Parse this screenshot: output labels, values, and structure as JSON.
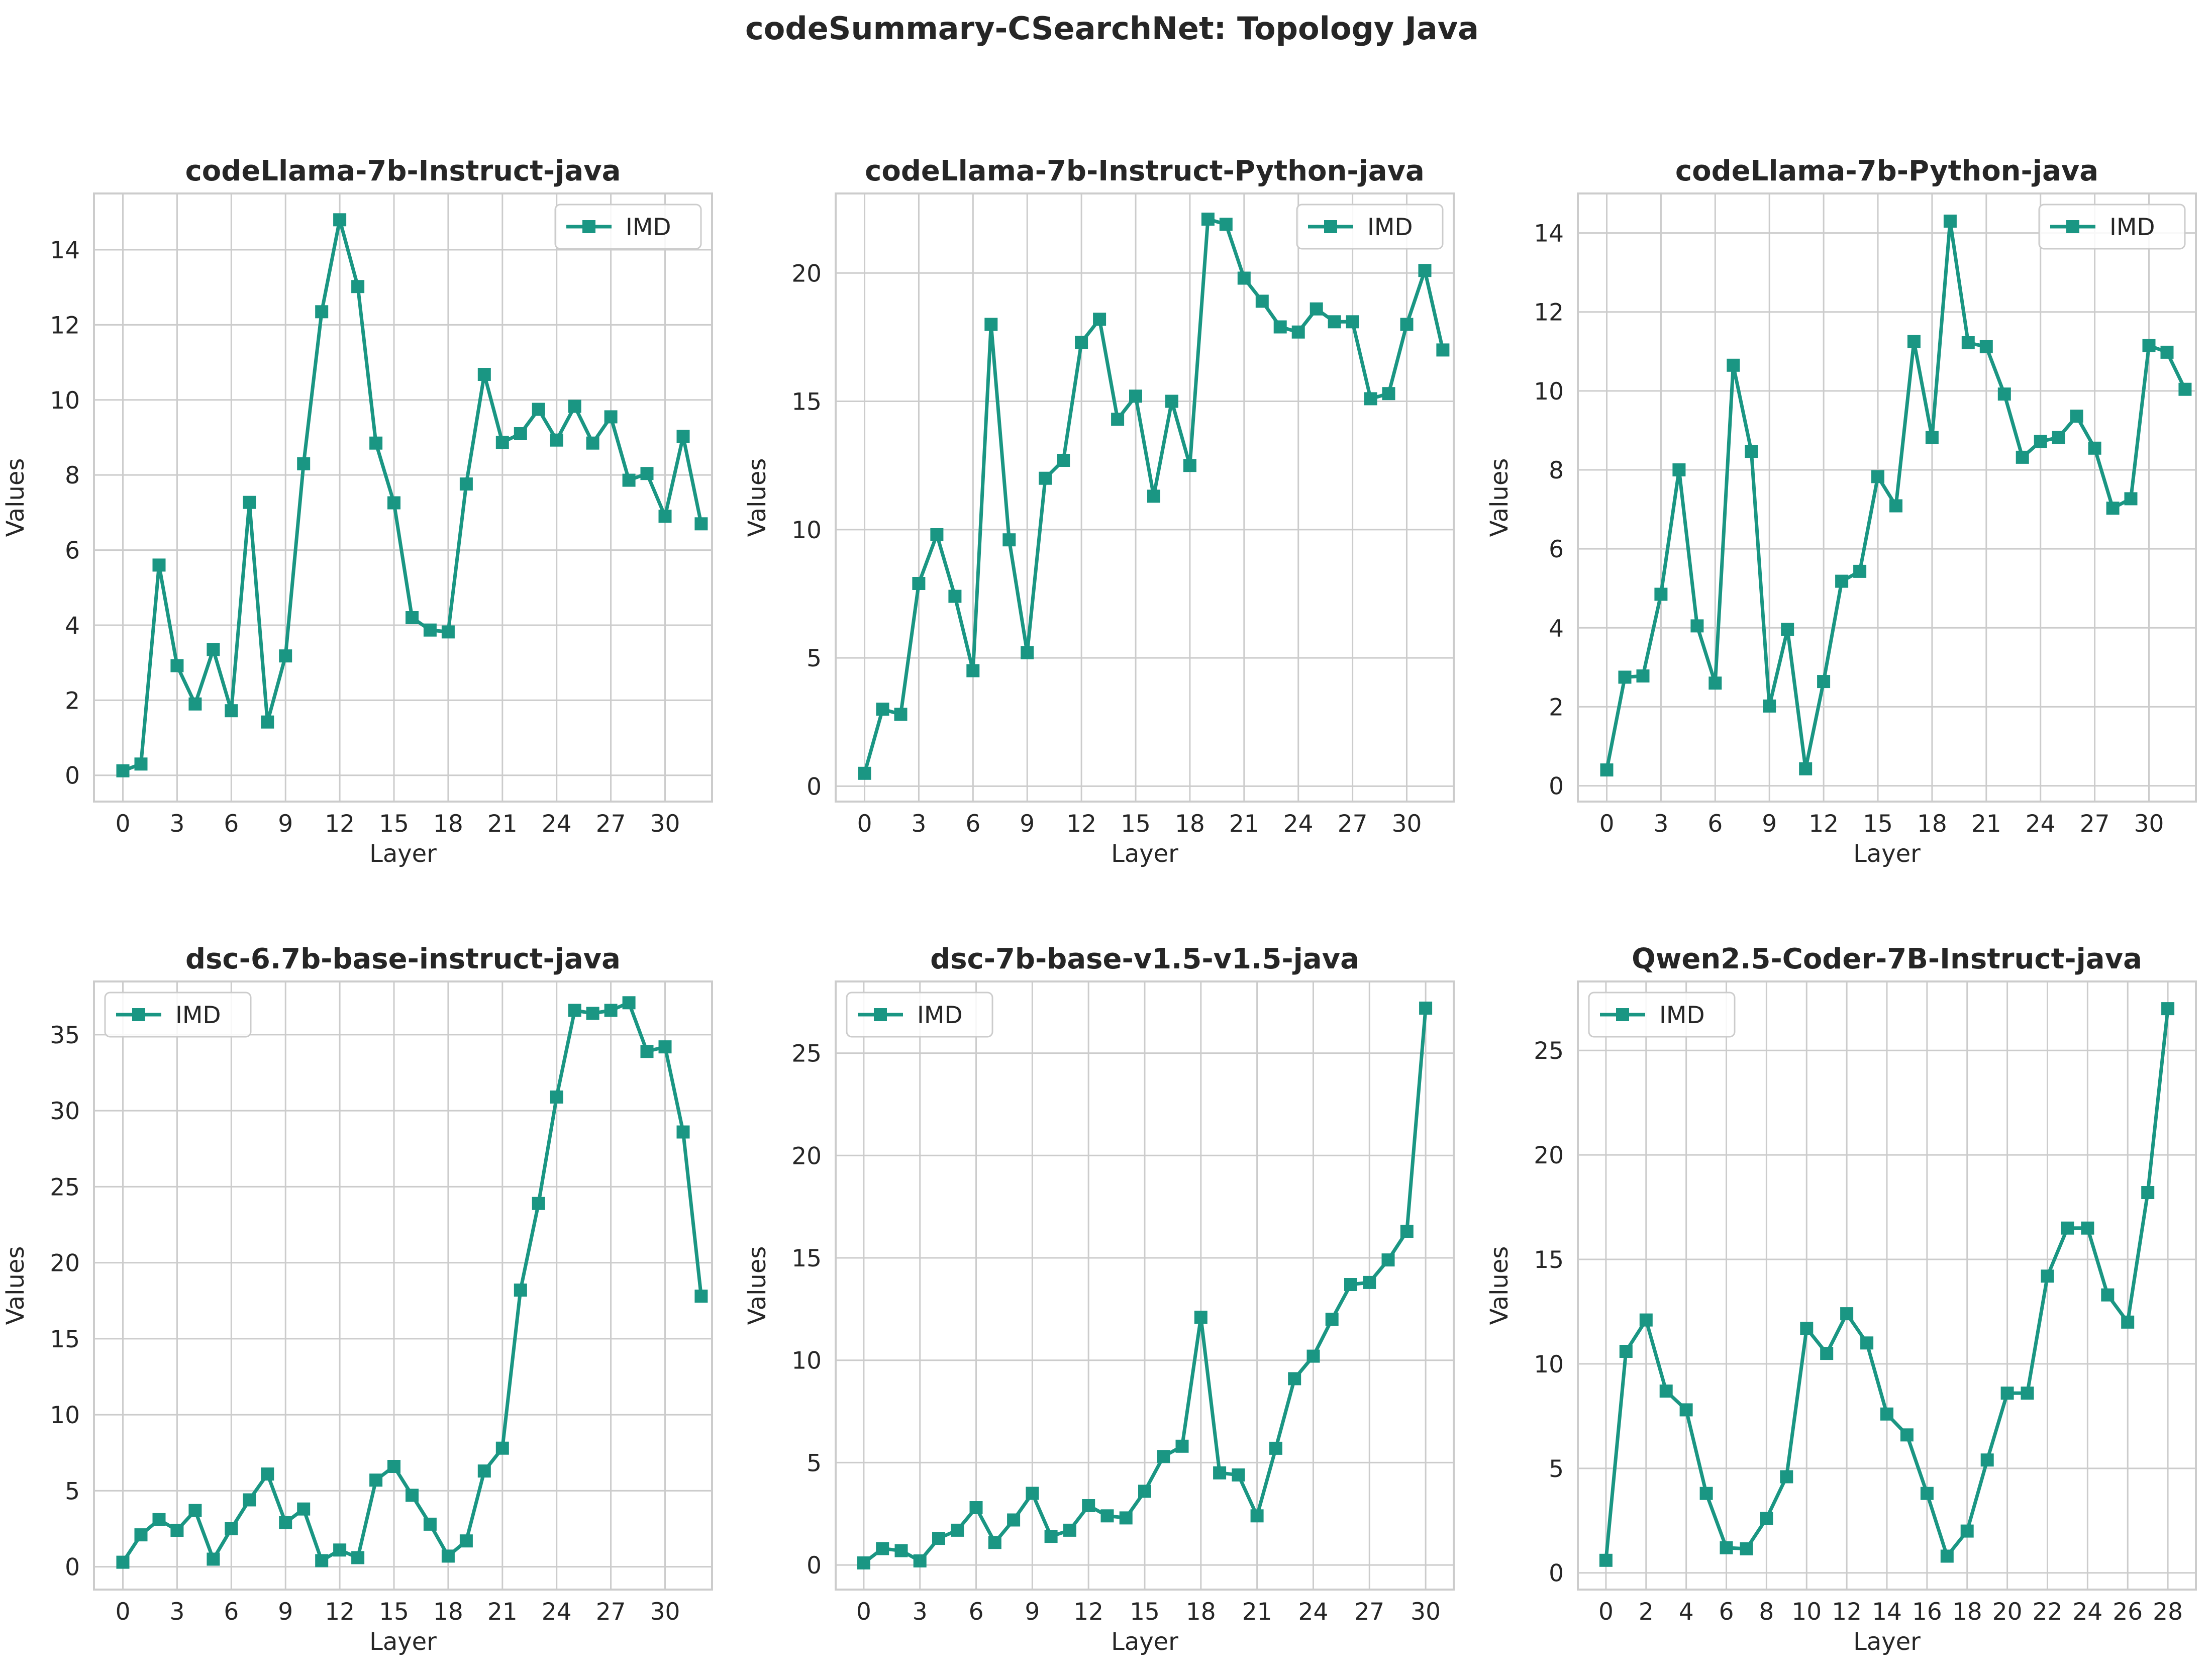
{
  "title": "codeSummary-CSearchNet: Topology Java",
  "colors": {
    "series": "#1a9683",
    "grid": "#cccccc",
    "spine": "#cccccc",
    "background": "#ffffff"
  },
  "chart_data": [
    {
      "type": "line",
      "title": "codeLlama-7b-Instruct-java",
      "xlabel": "Layer",
      "ylabel": "Values",
      "xlim": [
        -1.6,
        32.6
      ],
      "ylim": [
        -0.7,
        15.5
      ],
      "xticks": [
        0,
        3,
        6,
        9,
        12,
        15,
        18,
        21,
        24,
        27,
        30
      ],
      "yticks": [
        0,
        2,
        4,
        6,
        8,
        10,
        12,
        14
      ],
      "legend": "top-right",
      "grid": true,
      "marker": "square",
      "series": [
        {
          "name": "IMD",
          "x": [
            0,
            1,
            2,
            3,
            4,
            5,
            6,
            7,
            8,
            9,
            10,
            11,
            12,
            13,
            14,
            15,
            16,
            17,
            18,
            19,
            20,
            21,
            22,
            23,
            24,
            25,
            26,
            27,
            28,
            29,
            30,
            31,
            32
          ],
          "values": [
            0.12,
            0.3,
            5.6,
            2.92,
            1.9,
            3.35,
            1.72,
            7.27,
            1.42,
            3.18,
            8.3,
            12.35,
            14.8,
            13.02,
            8.85,
            7.26,
            4.2,
            3.87,
            3.82,
            7.76,
            10.68,
            8.87,
            9.1,
            9.75,
            8.93,
            9.83,
            8.85,
            9.55,
            7.86,
            8.04,
            6.9,
            9.03,
            6.7
          ]
        }
      ]
    },
    {
      "type": "line",
      "title": "codeLlama-7b-Instruct-Python-java",
      "xlabel": "Layer",
      "ylabel": "Values",
      "xlim": [
        -1.6,
        32.6
      ],
      "ylim": [
        -0.6,
        23.1
      ],
      "xticks": [
        0,
        3,
        6,
        9,
        12,
        15,
        18,
        21,
        24,
        27,
        30
      ],
      "yticks": [
        0,
        5,
        10,
        15,
        20
      ],
      "legend": "top-right",
      "grid": true,
      "marker": "square",
      "series": [
        {
          "name": "IMD",
          "x": [
            0,
            1,
            2,
            3,
            4,
            5,
            6,
            7,
            8,
            9,
            10,
            11,
            12,
            13,
            14,
            15,
            16,
            17,
            18,
            19,
            20,
            21,
            22,
            23,
            24,
            25,
            26,
            27,
            28,
            29,
            30,
            31,
            32
          ],
          "values": [
            0.5,
            3.0,
            2.8,
            7.9,
            9.8,
            7.4,
            4.5,
            18.0,
            9.6,
            5.2,
            12.0,
            12.7,
            17.3,
            18.2,
            14.3,
            15.2,
            11.3,
            15.0,
            12.5,
            22.1,
            21.9,
            19.8,
            18.9,
            17.9,
            17.7,
            18.6,
            18.1,
            18.1,
            15.1,
            15.3,
            18.0,
            20.1,
            17.0
          ]
        }
      ]
    },
    {
      "type": "line",
      "title": "codeLlama-7b-Python-java",
      "xlabel": "Layer",
      "ylabel": "Values",
      "xlim": [
        -1.6,
        32.6
      ],
      "ylim": [
        -0.4,
        15.0
      ],
      "xticks": [
        0,
        3,
        6,
        9,
        12,
        15,
        18,
        21,
        24,
        27,
        30
      ],
      "yticks": [
        0,
        2,
        4,
        6,
        8,
        10,
        12,
        14
      ],
      "legend": "top-right",
      "grid": true,
      "marker": "square",
      "series": [
        {
          "name": "IMD",
          "x": [
            0,
            1,
            2,
            3,
            4,
            5,
            6,
            7,
            8,
            9,
            10,
            11,
            12,
            13,
            14,
            15,
            16,
            17,
            18,
            19,
            20,
            21,
            22,
            23,
            24,
            25,
            26,
            27,
            28,
            29,
            30,
            31,
            32
          ],
          "values": [
            0.4,
            2.75,
            2.78,
            4.85,
            8.0,
            4.05,
            2.6,
            10.65,
            8.47,
            2.02,
            3.96,
            0.43,
            2.64,
            5.18,
            5.43,
            7.83,
            7.09,
            11.25,
            8.82,
            14.3,
            11.22,
            11.12,
            9.92,
            8.32,
            8.72,
            8.82,
            9.36,
            8.55,
            7.03,
            7.27,
            11.15,
            10.98,
            10.04
          ]
        }
      ]
    },
    {
      "type": "line",
      "title": "dsc-6.7b-base-instruct-java",
      "xlabel": "Layer",
      "ylabel": "Values",
      "xlim": [
        -1.6,
        32.6
      ],
      "ylim": [
        -1.5,
        38.5
      ],
      "xticks": [
        0,
        3,
        6,
        9,
        12,
        15,
        18,
        21,
        24,
        27,
        30
      ],
      "yticks": [
        0,
        5,
        10,
        15,
        20,
        25,
        30,
        35
      ],
      "legend": "top-left",
      "grid": true,
      "marker": "square",
      "series": [
        {
          "name": "IMD",
          "x": [
            0,
            1,
            2,
            3,
            4,
            5,
            6,
            7,
            8,
            9,
            10,
            11,
            12,
            13,
            14,
            15,
            16,
            17,
            18,
            19,
            20,
            21,
            22,
            23,
            24,
            25,
            26,
            27,
            28,
            29,
            30,
            31,
            32
          ],
          "values": [
            0.3,
            2.1,
            3.1,
            2.4,
            3.7,
            0.5,
            2.5,
            4.4,
            6.1,
            2.9,
            3.8,
            0.4,
            1.1,
            0.6,
            5.7,
            6.6,
            4.7,
            2.8,
            0.7,
            1.7,
            6.3,
            7.8,
            18.2,
            23.9,
            30.9,
            36.6,
            36.4,
            36.6,
            37.1,
            33.9,
            34.2,
            28.6,
            17.8
          ]
        }
      ]
    },
    {
      "type": "line",
      "title": "dsc-7b-base-v1.5-v1.5-java",
      "xlabel": "Layer",
      "ylabel": "Values",
      "xlim": [
        -1.5,
        31.5
      ],
      "ylim": [
        -1.2,
        28.5
      ],
      "xticks": [
        0,
        3,
        6,
        9,
        12,
        15,
        18,
        21,
        24,
        27,
        30
      ],
      "yticks": [
        0,
        5,
        10,
        15,
        20,
        25
      ],
      "legend": "top-left",
      "grid": true,
      "marker": "square",
      "series": [
        {
          "name": "IMD",
          "x": [
            0,
            1,
            2,
            3,
            4,
            5,
            6,
            7,
            8,
            9,
            10,
            11,
            12,
            13,
            14,
            15,
            16,
            17,
            18,
            19,
            20,
            21,
            22,
            23,
            24,
            25,
            26,
            27,
            28,
            29,
            30
          ],
          "values": [
            0.1,
            0.8,
            0.7,
            0.2,
            1.3,
            1.7,
            2.8,
            1.1,
            2.2,
            3.5,
            1.4,
            1.7,
            2.9,
            2.4,
            2.3,
            3.6,
            5.3,
            5.8,
            12.1,
            4.5,
            4.4,
            2.4,
            5.7,
            9.1,
            10.2,
            12.0,
            13.7,
            13.8,
            14.9,
            16.3,
            27.2
          ]
        }
      ]
    },
    {
      "type": "line",
      "title": "Qwen2.5-Coder-7B-Instruct-java",
      "xlabel": "Layer",
      "ylabel": "Values",
      "xlim": [
        -1.4,
        29.4
      ],
      "ylim": [
        -0.8,
        28.3
      ],
      "xticks": [
        0,
        2,
        4,
        6,
        8,
        10,
        12,
        14,
        16,
        18,
        20,
        22,
        24,
        26,
        28
      ],
      "yticks": [
        0,
        5,
        10,
        15,
        20,
        25
      ],
      "legend": "top-left",
      "grid": true,
      "marker": "square",
      "series": [
        {
          "name": "IMD",
          "x": [
            0,
            1,
            2,
            3,
            4,
            5,
            6,
            7,
            8,
            9,
            10,
            11,
            12,
            13,
            14,
            15,
            16,
            17,
            18,
            19,
            20,
            21,
            22,
            23,
            24,
            25,
            26,
            27,
            28
          ],
          "values": [
            0.6,
            10.6,
            12.1,
            8.7,
            7.8,
            3.8,
            1.2,
            1.15,
            2.6,
            4.6,
            11.7,
            10.5,
            12.4,
            11.0,
            7.6,
            6.6,
            3.8,
            0.8,
            2.0,
            5.4,
            8.6,
            8.6,
            14.2,
            16.5,
            16.5,
            13.3,
            12.0,
            18.2,
            27.0
          ]
        }
      ]
    }
  ]
}
